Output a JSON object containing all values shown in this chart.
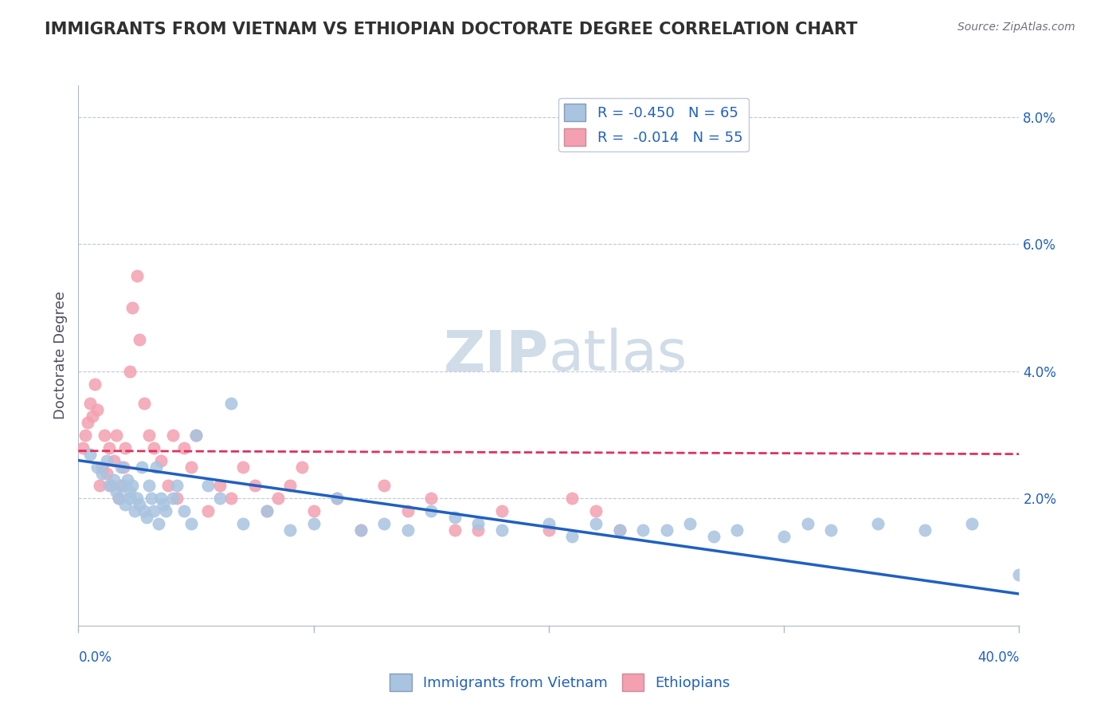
{
  "title": "IMMIGRANTS FROM VIETNAM VS ETHIOPIAN DOCTORATE DEGREE CORRELATION CHART",
  "source": "Source: ZipAtlas.com",
  "ylabel": "Doctorate Degree",
  "right_yticks": [
    "8.0%",
    "6.0%",
    "4.0%",
    "2.0%"
  ],
  "right_ytick_vals": [
    0.08,
    0.06,
    0.04,
    0.02
  ],
  "legend_blue_label": "R = -0.450   N = 65",
  "legend_pink_label": "R =  -0.014   N = 55",
  "legend_blue_short": "Immigrants from Vietnam",
  "legend_pink_short": "Ethiopians",
  "blue_color": "#a8c4e0",
  "pink_color": "#f4a0b0",
  "blue_line_color": "#2060c0",
  "pink_line_color": "#e03060",
  "legend_text_color": "#2060c0",
  "title_color": "#303030",
  "background_color": "#ffffff",
  "plot_bg_color": "#ffffff",
  "grid_color": "#c0c8d8",
  "watermark_color": "#d0dce8",
  "xlim": [
    0.0,
    0.4
  ],
  "ylim": [
    0.0,
    0.085
  ],
  "blue_scatter_x": [
    0.005,
    0.008,
    0.01,
    0.012,
    0.013,
    0.015,
    0.016,
    0.017,
    0.018,
    0.019,
    0.02,
    0.021,
    0.022,
    0.022,
    0.023,
    0.024,
    0.025,
    0.026,
    0.027,
    0.028,
    0.029,
    0.03,
    0.031,
    0.032,
    0.033,
    0.034,
    0.035,
    0.036,
    0.037,
    0.04,
    0.042,
    0.045,
    0.048,
    0.05,
    0.055,
    0.06,
    0.065,
    0.07,
    0.08,
    0.09,
    0.1,
    0.11,
    0.12,
    0.13,
    0.14,
    0.15,
    0.16,
    0.17,
    0.18,
    0.2,
    0.21,
    0.22,
    0.23,
    0.24,
    0.25,
    0.26,
    0.27,
    0.28,
    0.3,
    0.31,
    0.32,
    0.34,
    0.36,
    0.38,
    0.4
  ],
  "blue_scatter_y": [
    0.027,
    0.025,
    0.024,
    0.026,
    0.022,
    0.023,
    0.021,
    0.02,
    0.025,
    0.022,
    0.019,
    0.023,
    0.021,
    0.02,
    0.022,
    0.018,
    0.02,
    0.019,
    0.025,
    0.018,
    0.017,
    0.022,
    0.02,
    0.018,
    0.025,
    0.016,
    0.02,
    0.019,
    0.018,
    0.02,
    0.022,
    0.018,
    0.016,
    0.03,
    0.022,
    0.02,
    0.035,
    0.016,
    0.018,
    0.015,
    0.016,
    0.02,
    0.015,
    0.016,
    0.015,
    0.018,
    0.017,
    0.016,
    0.015,
    0.016,
    0.014,
    0.016,
    0.015,
    0.015,
    0.015,
    0.016,
    0.014,
    0.015,
    0.014,
    0.016,
    0.015,
    0.016,
    0.015,
    0.016,
    0.008
  ],
  "pink_scatter_x": [
    0.002,
    0.003,
    0.004,
    0.005,
    0.006,
    0.007,
    0.008,
    0.009,
    0.01,
    0.011,
    0.012,
    0.013,
    0.014,
    0.015,
    0.016,
    0.017,
    0.018,
    0.019,
    0.02,
    0.022,
    0.023,
    0.025,
    0.026,
    0.028,
    0.03,
    0.032,
    0.035,
    0.038,
    0.04,
    0.042,
    0.045,
    0.048,
    0.05,
    0.055,
    0.06,
    0.065,
    0.07,
    0.075,
    0.08,
    0.085,
    0.09,
    0.095,
    0.1,
    0.11,
    0.12,
    0.13,
    0.14,
    0.15,
    0.16,
    0.17,
    0.18,
    0.2,
    0.21,
    0.22,
    0.23
  ],
  "pink_scatter_y": [
    0.028,
    0.03,
    0.032,
    0.035,
    0.033,
    0.038,
    0.034,
    0.022,
    0.025,
    0.03,
    0.024,
    0.028,
    0.022,
    0.026,
    0.03,
    0.02,
    0.022,
    0.025,
    0.028,
    0.04,
    0.05,
    0.055,
    0.045,
    0.035,
    0.03,
    0.028,
    0.026,
    0.022,
    0.03,
    0.02,
    0.028,
    0.025,
    0.03,
    0.018,
    0.022,
    0.02,
    0.025,
    0.022,
    0.018,
    0.02,
    0.022,
    0.025,
    0.018,
    0.02,
    0.015,
    0.022,
    0.018,
    0.02,
    0.015,
    0.015,
    0.018,
    0.015,
    0.02,
    0.018,
    0.015
  ],
  "blue_trend_x": [
    0.0,
    0.4
  ],
  "blue_trend_y": [
    0.026,
    0.005
  ],
  "pink_trend_x": [
    0.0,
    0.4
  ],
  "pink_trend_y": [
    0.0275,
    0.027
  ]
}
